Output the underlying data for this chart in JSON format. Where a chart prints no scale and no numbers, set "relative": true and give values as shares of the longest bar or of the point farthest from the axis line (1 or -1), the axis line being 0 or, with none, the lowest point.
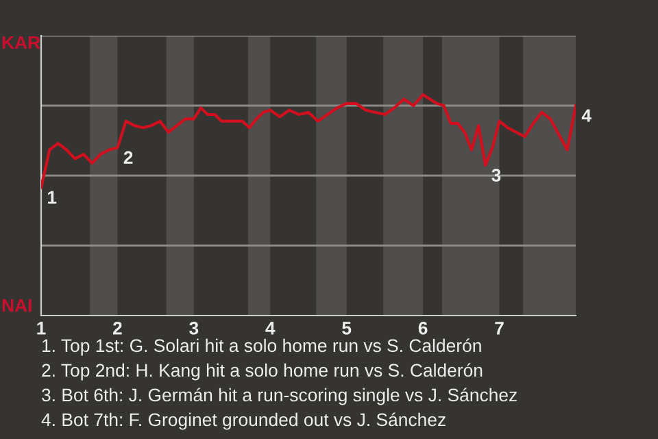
{
  "chart_data": {
    "type": "line",
    "relative": true,
    "x": [
      1,
      1.111,
      1.222,
      1.333,
      1.444,
      1.556,
      1.667,
      1.778,
      1.889,
      2,
      2.111,
      2.222,
      2.333,
      2.444,
      2.556,
      2.667,
      2.778,
      2.889,
      3,
      3.091,
      3.182,
      3.273,
      3.364,
      3.455,
      3.545,
      3.636,
      3.727,
      3.818,
      3.909,
      4,
      4.125,
      4.25,
      4.375,
      4.5,
      4.625,
      4.75,
      4.875,
      5,
      5.125,
      5.25,
      5.375,
      5.5,
      5.625,
      5.75,
      5.875,
      6,
      6.091,
      6.182,
      6.273,
      6.364,
      6.455,
      6.545,
      6.636,
      6.727,
      6.818,
      6.909,
      7,
      7.111,
      7.222,
      7.333,
      7.444,
      7.556,
      7.667,
      7.778,
      7.889,
      8
    ],
    "series": [
      {
        "color": "#d0101e",
        "values": [
          0.58,
          0.75,
          0.78,
          0.75,
          0.71,
          0.73,
          0.69,
          0.73,
          0.75,
          0.76,
          0.88,
          0.86,
          0.85,
          0.86,
          0.88,
          0.83,
          0.86,
          0.89,
          0.89,
          0.94,
          0.91,
          0.91,
          0.88,
          0.88,
          0.88,
          0.88,
          0.85,
          0.89,
          0.92,
          0.93,
          0.9,
          0.93,
          0.91,
          0.92,
          0.88,
          0.91,
          0.94,
          0.96,
          0.96,
          0.93,
          0.92,
          0.91,
          0.94,
          0.98,
          0.95,
          1,
          0.98,
          0.96,
          0.95,
          0.87,
          0.87,
          0.83,
          0.75,
          0.86,
          0.68,
          0.76,
          0.88,
          0.85,
          0.83,
          0.81,
          0.87,
          0.92,
          0.89,
          0.82,
          0.75,
          0.95
        ]
      }
    ],
    "xlim": [
      1,
      8
    ],
    "xticks": [
      1,
      2,
      3,
      4,
      5,
      6,
      7
    ],
    "grid": "y",
    "marker": "none",
    "line_style": "solid",
    "bands": [
      {
        "axis": "x",
        "from": 1.64,
        "to": 2,
        "color": "#4f4e4c"
      },
      {
        "axis": "x",
        "from": 2.64,
        "to": 3,
        "color": "#4f4e4c"
      },
      {
        "axis": "x",
        "from": 3.71,
        "to": 4,
        "color": "#4f4e4c"
      },
      {
        "axis": "x",
        "from": 4.6,
        "to": 5,
        "color": "#4f4e4c"
      },
      {
        "axis": "x",
        "from": 5.48,
        "to": 6,
        "color": "#4f4e4c"
      },
      {
        "axis": "x",
        "from": 6.25,
        "to": 7,
        "color": "#4f4e4c"
      },
      {
        "axis": "x",
        "from": 7.31,
        "to": 8,
        "color": "#4f4e4c"
      }
    ],
    "annotations": [
      {
        "text": "1",
        "x": 1,
        "y": 0.58
      },
      {
        "text": "2",
        "x": 2,
        "y": 0.76
      },
      {
        "text": "3",
        "x": 6.818,
        "y": 0.68
      },
      {
        "text": "4",
        "x": 8,
        "y": 0.95
      },
      "KAR",
      "NAI",
      "1. Top 1st: G. Solari hit a solo home run vs S. Calderón",
      "2. Top 2nd: H. Kang hit a solo home run vs S. Calderón",
      "3. Bot 6th: J. Germán hit a run-scoring single vs J. Sánchez",
      "4. Bot 7th: F. Groginet grounded out vs J. Sánchez"
    ]
  }
}
